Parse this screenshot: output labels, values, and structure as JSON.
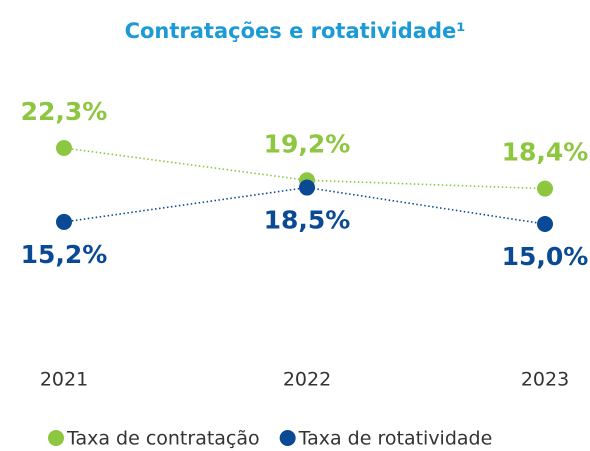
{
  "chart_data": {
    "type": "line",
    "title": "Contratações e rotatividade¹",
    "categories": [
      "2021",
      "2022",
      "2023"
    ],
    "series": [
      {
        "name": "Taxa de contratação",
        "color": "#8dc63f",
        "values": [
          22.3,
          19.2,
          18.4
        ],
        "value_labels": [
          "22,3%",
          "19,2%",
          "18,4%"
        ]
      },
      {
        "name": "Taxa de rotatividade",
        "color": "#0a4a94",
        "values": [
          15.2,
          18.5,
          15.0
        ],
        "value_labels": [
          "15,2%",
          "18,5%",
          "15,0%"
        ]
      }
    ],
    "legend": "bottom"
  }
}
